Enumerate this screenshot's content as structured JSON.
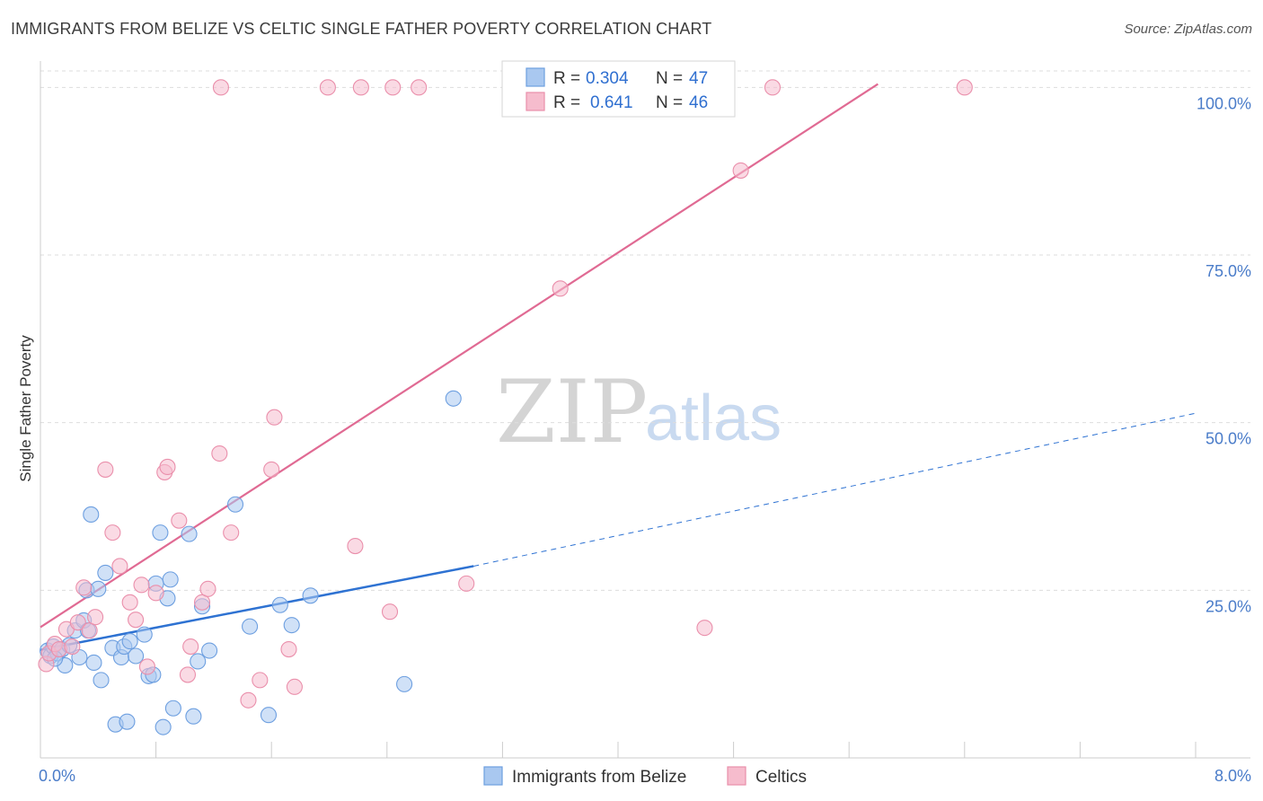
{
  "header": {
    "title": "IMMIGRANTS FROM BELIZE VS CELTIC SINGLE FATHER POVERTY CORRELATION CHART",
    "source": "Source: ZipAtlas.com"
  },
  "watermark": {
    "zip": "ZIP",
    "atlas": "atlas"
  },
  "legend": {
    "r_label": "R =",
    "n_label": "N =",
    "rows": [
      {
        "r": "0.304",
        "n": "47"
      },
      {
        "r": "0.641",
        "n": "46"
      }
    ]
  },
  "colors": {
    "belize_fill": "#a9c8f0",
    "belize_stroke": "#6d9fe0",
    "belize_line": "#2e72d2",
    "celtic_fill": "#f6bccd",
    "celtic_stroke": "#ea8fab",
    "celtic_line": "#e06a93",
    "grid": "#dddddd",
    "tick_label": "#4a7cc9"
  },
  "chart_data": {
    "type": "scatter",
    "title": "IMMIGRANTS FROM BELIZE VS CELTIC SINGLE FATHER POVERTY CORRELATION CHART",
    "xlabel": "",
    "ylabel": "Single Father Poverty",
    "xlim": [
      0,
      8
    ],
    "ylim": [
      0,
      105
    ],
    "x_tick_labels": [
      "0.0%",
      "8.0%"
    ],
    "y_ticks": [
      {
        "value": 25,
        "label": "25.0%"
      },
      {
        "value": 50,
        "label": "50.0%"
      },
      {
        "value": 75,
        "label": "75.0%"
      },
      {
        "value": 100,
        "label": "100.0%"
      }
    ],
    "grid": true,
    "legend_position": "top-center",
    "series": [
      {
        "name": "Immigrants from Belize",
        "r": 0.304,
        "n": 47,
        "trend": {
          "x0": 0.0,
          "y0": 16.1,
          "x1": 3.0,
          "y1": 28.6,
          "dashed_to_x": 8.0,
          "dashed_to_y": 51.4
        },
        "points": [
          [
            0.05,
            16.0
          ],
          [
            0.07,
            15.2
          ],
          [
            0.09,
            16.6
          ],
          [
            0.12,
            15.6
          ],
          [
            0.15,
            16.2
          ],
          [
            0.17,
            13.8
          ],
          [
            0.2,
            16.8
          ],
          [
            0.24,
            19.0
          ],
          [
            0.27,
            15.0
          ],
          [
            0.3,
            20.5
          ],
          [
            0.32,
            25.0
          ],
          [
            0.33,
            19.0
          ],
          [
            0.35,
            36.3
          ],
          [
            0.37,
            14.2
          ],
          [
            0.4,
            25.2
          ],
          [
            0.42,
            11.6
          ],
          [
            0.45,
            27.6
          ],
          [
            0.5,
            16.4
          ],
          [
            0.52,
            5.0
          ],
          [
            0.56,
            15.0
          ],
          [
            0.58,
            16.6
          ],
          [
            0.62,
            17.4
          ],
          [
            0.66,
            15.2
          ],
          [
            0.72,
            18.4
          ],
          [
            0.75,
            12.2
          ],
          [
            0.78,
            12.4
          ],
          [
            0.8,
            26.0
          ],
          [
            0.83,
            33.6
          ],
          [
            0.85,
            4.6
          ],
          [
            0.88,
            23.8
          ],
          [
            0.9,
            26.6
          ],
          [
            0.92,
            7.4
          ],
          [
            1.03,
            33.4
          ],
          [
            1.06,
            6.2
          ],
          [
            1.09,
            14.4
          ],
          [
            1.12,
            22.6
          ],
          [
            1.17,
            16.0
          ],
          [
            1.35,
            37.8
          ],
          [
            1.45,
            19.6
          ],
          [
            1.58,
            6.4
          ],
          [
            1.66,
            22.8
          ],
          [
            1.74,
            19.8
          ],
          [
            1.87,
            24.2
          ],
          [
            2.52,
            11.0
          ],
          [
            2.86,
            53.6
          ],
          [
            0.1,
            14.8
          ],
          [
            0.6,
            5.4
          ]
        ]
      },
      {
        "name": "Celtics",
        "r": 0.641,
        "n": 46,
        "trend": {
          "x0": 0.0,
          "y0": 19.5,
          "x1": 5.8,
          "y1": 100.5
        },
        "points": [
          [
            0.04,
            14.0
          ],
          [
            0.06,
            15.6
          ],
          [
            0.1,
            17.0
          ],
          [
            0.13,
            16.2
          ],
          [
            0.18,
            19.2
          ],
          [
            0.22,
            16.6
          ],
          [
            0.26,
            20.2
          ],
          [
            0.3,
            25.4
          ],
          [
            0.34,
            19.0
          ],
          [
            0.38,
            21.0
          ],
          [
            0.45,
            43.0
          ],
          [
            0.5,
            33.6
          ],
          [
            0.55,
            28.6
          ],
          [
            0.62,
            23.2
          ],
          [
            0.66,
            20.6
          ],
          [
            0.7,
            25.8
          ],
          [
            0.74,
            13.6
          ],
          [
            0.8,
            24.6
          ],
          [
            0.86,
            42.6
          ],
          [
            0.88,
            43.4
          ],
          [
            0.96,
            35.4
          ],
          [
            1.02,
            12.4
          ],
          [
            1.04,
            16.6
          ],
          [
            1.12,
            23.2
          ],
          [
            1.16,
            25.2
          ],
          [
            1.24,
            45.4
          ],
          [
            1.32,
            33.6
          ],
          [
            1.44,
            8.6
          ],
          [
            1.52,
            11.6
          ],
          [
            1.6,
            43.0
          ],
          [
            1.62,
            50.8
          ],
          [
            1.72,
            16.2
          ],
          [
            1.76,
            10.6
          ],
          [
            2.18,
            31.6
          ],
          [
            2.42,
            21.8
          ],
          [
            2.95,
            26.0
          ],
          [
            3.6,
            70.0
          ],
          [
            4.6,
            19.4
          ],
          [
            4.85,
            87.6
          ],
          [
            1.25,
            100.0
          ],
          [
            1.99,
            100.0
          ],
          [
            2.22,
            100.0
          ],
          [
            2.44,
            100.0
          ],
          [
            2.62,
            100.0
          ],
          [
            5.07,
            100.0
          ],
          [
            6.4,
            100.0
          ]
        ]
      }
    ]
  }
}
